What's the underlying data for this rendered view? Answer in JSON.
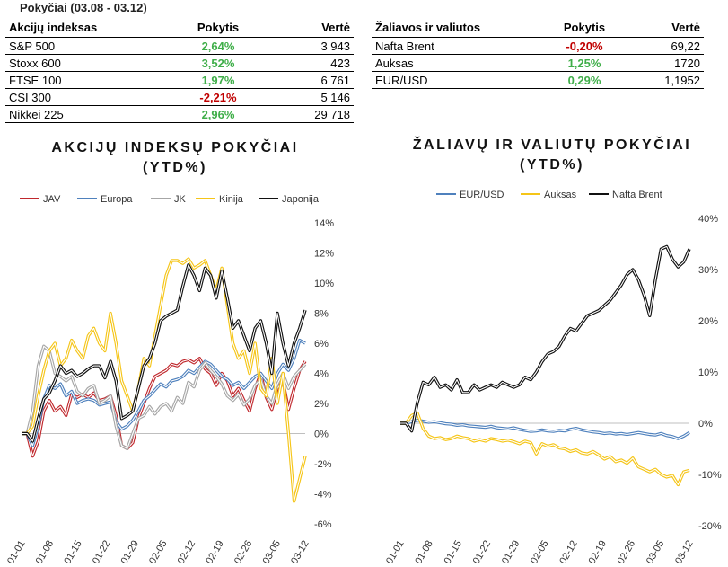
{
  "period": "Pokyčiai (03.08 - 03.12)",
  "stocks_table": {
    "headers": [
      "Akcijų indeksas",
      "Pokytis",
      "Vertė"
    ],
    "rows": [
      {
        "name": "S&P 500",
        "change": "2,64%",
        "value": "3 943",
        "status": "pos"
      },
      {
        "name": "Stoxx 600",
        "change": "3,52%",
        "value": "423",
        "status": "pos"
      },
      {
        "name": "FTSE 100",
        "change": "1,97%",
        "value": "6 761",
        "status": "pos"
      },
      {
        "name": "CSI 300",
        "change": "-2,21%",
        "value": "5 146",
        "status": "neg"
      },
      {
        "name": "Nikkei 225",
        "change": "2,96%",
        "value": "29 718",
        "status": "pos"
      }
    ]
  },
  "commodities_table": {
    "headers": [
      "Žaliavos ir valiutos",
      "Pokytis",
      "Vertė"
    ],
    "rows": [
      {
        "name": "Nafta Brent",
        "change": "-0,20%",
        "value": "69,22",
        "status": "neg"
      },
      {
        "name": "Auksas",
        "change": "1,25%",
        "value": "1720",
        "status": "pos"
      },
      {
        "name": "EUR/USD",
        "change": "0,29%",
        "value": "1,1952",
        "status": "pos"
      }
    ]
  },
  "colors": {
    "positive": "#3fae49",
    "negative": "#c00000"
  },
  "chart_data": [
    {
      "type": "line",
      "title": "AKCIJŲ INDEKSŲ POKYČIAI (YTD%)",
      "title_lines": [
        "AKCIJŲ INDEKSŲ POKYČIAI",
        "(YTD%)"
      ],
      "legend_position": "top",
      "ylim": [
        -6,
        14
      ],
      "yticks": [
        -6,
        -4,
        -2,
        0,
        2,
        4,
        6,
        8,
        10,
        12,
        14
      ],
      "ytick_labels": [
        "-6%",
        "-4%",
        "-2%",
        "0%",
        "2%",
        "4%",
        "6%",
        "8%",
        "10%",
        "12%",
        "14%"
      ],
      "xtick_labels": [
        "01-01",
        "01-08",
        "01-15",
        "01-22",
        "01-29",
        "02-05",
        "02-12",
        "02-19",
        "02-26",
        "03-05",
        "03-12"
      ],
      "grid": false,
      "series": [
        {
          "name": "JAV",
          "color": "#c0282d",
          "values": [
            0,
            0,
            -1.5,
            -0.5,
            1.5,
            2.2,
            1.5,
            1.8,
            1.2,
            2.6,
            2.4,
            2.6,
            2.4,
            2.7,
            2.2,
            2.3,
            2.5,
            1.2,
            -0.8,
            -1.0,
            -0.6,
            1.0,
            2.0,
            3.0,
            3.8,
            4.0,
            4.2,
            4.6,
            4.5,
            4.8,
            4.9,
            4.7,
            5.0,
            4.3,
            4.0,
            3.2,
            4.0,
            3.5,
            2.5,
            3.0,
            2.2,
            1.5,
            3.0,
            4.0,
            2.4,
            1.6,
            3.0,
            3.5,
            1.6,
            3.0,
            4.2,
            4.8
          ]
        },
        {
          "name": "Europa",
          "color": "#4f81bd",
          "values": [
            0,
            0,
            -0.8,
            0.5,
            2.3,
            3.2,
            3.0,
            3.3,
            2.5,
            2.8,
            2.0,
            2.2,
            2.3,
            2.2,
            1.9,
            2.0,
            2.1,
            0.8,
            0.3,
            0.5,
            0.9,
            1.5,
            2.2,
            2.5,
            2.9,
            3.3,
            3.1,
            3.5,
            3.6,
            3.8,
            4.2,
            4.0,
            4.4,
            4.8,
            4.6,
            4.2,
            3.8,
            3.6,
            3.2,
            3.4,
            3.0,
            3.4,
            3.8,
            4.0,
            3.5,
            3.0,
            4.0,
            4.6,
            4.2,
            5.0,
            6.2,
            6.0
          ]
        },
        {
          "name": "JK",
          "color": "#a6a6a6",
          "values": [
            0,
            0,
            1.5,
            4.5,
            5.8,
            5.5,
            4.0,
            3.8,
            3.5,
            3.8,
            2.8,
            2.5,
            3.0,
            3.2,
            2.0,
            2.2,
            2.5,
            0.5,
            -0.8,
            -1.0,
            0.0,
            1.0,
            1.2,
            1.8,
            1.3,
            1.8,
            2.0,
            1.5,
            2.4,
            2.0,
            3.4,
            3.1,
            4.2,
            4.7,
            4.2,
            3.8,
            3.3,
            2.5,
            2.2,
            2.6,
            1.9,
            2.3,
            3.2,
            3.6,
            2.5,
            2.0,
            3.3,
            4.0,
            3.0,
            3.8,
            4.2,
            4.6
          ]
        },
        {
          "name": "Kinija",
          "color": "#f5c518",
          "values": [
            0,
            0,
            0.5,
            2.5,
            4.2,
            5.5,
            6.0,
            4.5,
            5.0,
            6.2,
            5.5,
            5.0,
            6.5,
            7.0,
            6.0,
            5.5,
            8.0,
            6.0,
            3.5,
            2.5,
            1.5,
            3.0,
            5.0,
            4.5,
            6.5,
            8.5,
            10.5,
            11.5,
            11.5,
            11.3,
            11.6,
            11.0,
            11.2,
            11.5,
            10.5,
            9.5,
            11.0,
            8.5,
            6.0,
            5.0,
            5.5,
            4.0,
            6.0,
            3.0,
            2.5,
            5.0,
            2.0,
            4.0,
            0.0,
            -4.5,
            -3.0,
            -1.5
          ]
        },
        {
          "name": "Japonija",
          "color": "#111111",
          "values": [
            0,
            0,
            -0.5,
            1.0,
            2.3,
            2.7,
            3.5,
            4.5,
            4.0,
            4.2,
            3.8,
            4.0,
            4.3,
            4.5,
            4.5,
            3.7,
            4.8,
            3.5,
            1.0,
            1.2,
            1.5,
            3.0,
            4.5,
            5.0,
            6.0,
            7.5,
            7.8,
            8.0,
            8.2,
            9.8,
            11.2,
            10.5,
            9.5,
            11.0,
            10.5,
            9.0,
            10.8,
            9.0,
            7.0,
            7.5,
            6.5,
            5.5,
            7.0,
            7.5,
            6.0,
            4.0,
            8.0,
            6.0,
            4.5,
            6.0,
            7.0,
            8.2
          ]
        }
      ]
    },
    {
      "type": "line",
      "title": "ŽALIAVŲ IR VALIUTŲ POKYČIAI (YTD%)",
      "title_lines": [
        "ŽALIAVŲ IR VALIUTŲ POKYČIAI",
        "(YTD%)"
      ],
      "legend_position": "top",
      "ylim": [
        -20,
        40
      ],
      "yticks": [
        -20,
        -10,
        0,
        10,
        20,
        30,
        40
      ],
      "ytick_labels": [
        "-20%",
        "-10%",
        "0%",
        "10%",
        "20%",
        "30%",
        "40%"
      ],
      "xtick_labels": [
        "01-01",
        "01-08",
        "01-15",
        "01-22",
        "01-29",
        "02-05",
        "02-12",
        "02-19",
        "02-26",
        "03-05",
        "03-12"
      ],
      "grid": false,
      "series": [
        {
          "name": "EUR/USD",
          "color": "#4f81bd",
          "values": [
            0,
            0,
            0.3,
            0.6,
            0.4,
            0.2,
            0.3,
            0.1,
            -0.1,
            -0.2,
            -0.4,
            -0.3,
            -0.5,
            -0.6,
            -0.7,
            -0.8,
            -0.6,
            -0.9,
            -1.0,
            -1.1,
            -0.9,
            -1.2,
            -1.4,
            -1.6,
            -1.5,
            -1.3,
            -1.5,
            -1.6,
            -1.4,
            -1.5,
            -1.2,
            -1.0,
            -1.3,
            -1.5,
            -1.7,
            -1.8,
            -2.0,
            -1.9,
            -2.1,
            -2.0,
            -2.2,
            -2.0,
            -1.8,
            -2.0,
            -2.2,
            -2.3,
            -2.0,
            -2.4,
            -2.6,
            -3.0,
            -2.5,
            -1.8
          ]
        },
        {
          "name": "Auksas",
          "color": "#f5c518",
          "values": [
            0,
            0,
            1.5,
            2.0,
            -1.0,
            -2.5,
            -3.0,
            -2.8,
            -3.2,
            -3.0,
            -2.5,
            -2.8,
            -3.0,
            -3.5,
            -3.2,
            -3.5,
            -3.0,
            -3.2,
            -3.5,
            -3.3,
            -3.6,
            -4.0,
            -3.5,
            -3.8,
            -6.0,
            -4.0,
            -4.5,
            -4.2,
            -4.8,
            -5.0,
            -5.5,
            -5.2,
            -5.8,
            -6.0,
            -5.5,
            -6.2,
            -7.0,
            -6.5,
            -7.5,
            -7.2,
            -7.8,
            -6.8,
            -8.5,
            -9.0,
            -9.5,
            -9.0,
            -10.0,
            -10.5,
            -10.2,
            -12.0,
            -9.5,
            -9.2
          ]
        },
        {
          "name": "Nafta Brent",
          "color": "#111111",
          "values": [
            0,
            0,
            -1.5,
            4.0,
            8.0,
            7.5,
            9.0,
            7.0,
            7.5,
            6.5,
            8.5,
            6.0,
            6.0,
            7.5,
            6.5,
            7.0,
            7.5,
            7.0,
            8.0,
            7.5,
            7.0,
            7.5,
            9.0,
            8.5,
            10.0,
            12.0,
            13.5,
            14.0,
            15.0,
            17.0,
            18.5,
            18.0,
            19.5,
            21.0,
            21.5,
            22.0,
            23.0,
            24.0,
            25.5,
            27.0,
            29.0,
            30.0,
            28.0,
            25.0,
            21.0,
            28.0,
            34.0,
            34.5,
            32.0,
            30.5,
            31.5,
            34.0
          ]
        }
      ]
    }
  ]
}
